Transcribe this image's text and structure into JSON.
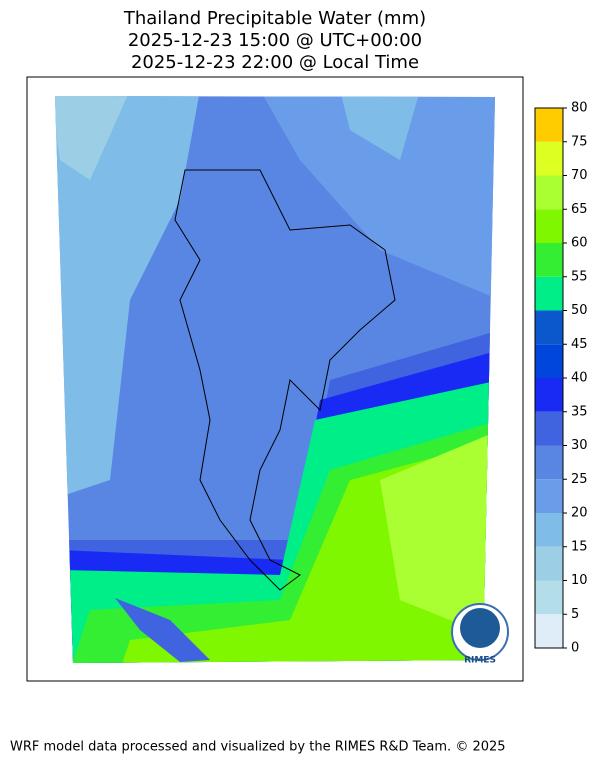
{
  "title": {
    "lines": [
      "Thailand Precipitable Water (mm)",
      "2025-12-23 15:00 @ UTC+00:00",
      "2025-12-23 22:00 @ Local Time"
    ]
  },
  "colorbar": {
    "ticks": [
      0,
      5,
      10,
      15,
      20,
      25,
      30,
      35,
      40,
      45,
      50,
      55,
      60,
      65,
      70,
      75,
      80
    ],
    "colors": [
      "#deedf8",
      "#b3dde9",
      "#9ccfe6",
      "#7fbde8",
      "#6a9de9",
      "#5a86e3",
      "#4063e0",
      "#1a2af5",
      "#0046dc",
      "#0a58cc",
      "#00ee88",
      "#33ee33",
      "#7ef700",
      "#aaff33",
      "#ddff22",
      "#ffff00"
    ],
    "top_color": "#ffcc00"
  },
  "logo": {
    "text": "RIMES"
  },
  "footer": "WRF model data processed and visualized by the RIMES R&D Team. © 2025"
}
